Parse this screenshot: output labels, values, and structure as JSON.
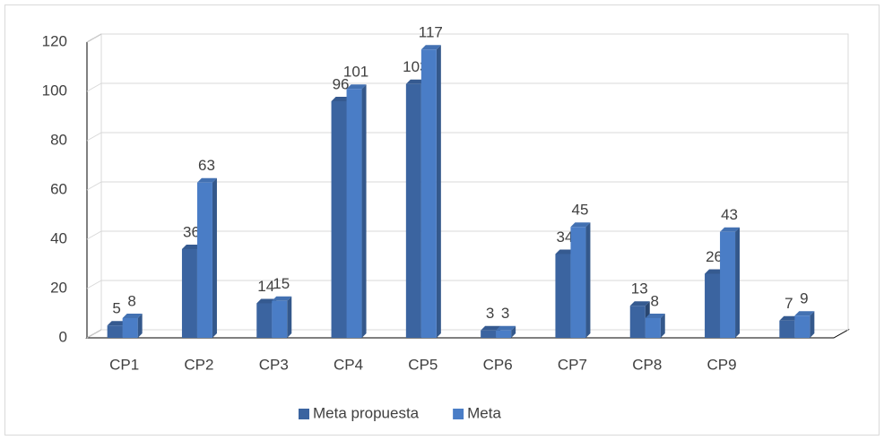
{
  "chart_data": {
    "type": "bar3d",
    "categories": [
      "CP1",
      "CP2",
      "CP3",
      "CP4",
      "CP5",
      "CP6",
      "CP7",
      "CP8",
      "CP9",
      null
    ],
    "series": [
      {
        "name": "Meta propuesta",
        "color": "#3b64a0",
        "values": [
          5,
          36,
          14,
          96,
          103,
          3,
          34,
          13,
          26,
          7
        ]
      },
      {
        "name": "Meta",
        "color": "#4a7dc6",
        "values": [
          8,
          63,
          15,
          101,
          117,
          3,
          45,
          8,
          43,
          9
        ]
      }
    ],
    "ylim": [
      0,
      120
    ],
    "yticks": [
      0,
      20,
      40,
      60,
      80,
      100,
      120
    ],
    "grid": true,
    "legend": "bottom"
  }
}
